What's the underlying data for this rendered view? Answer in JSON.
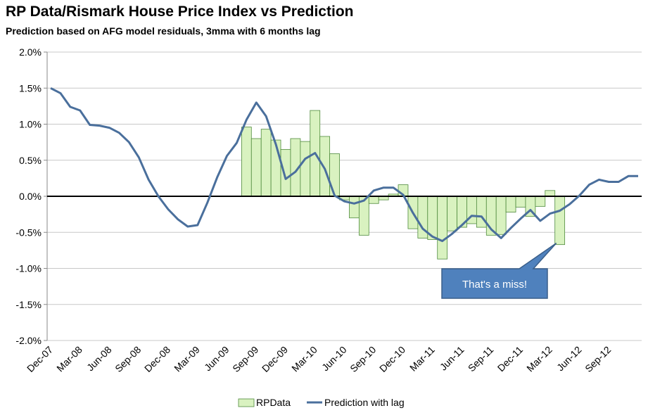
{
  "chart_data": {
    "type": "bar+line",
    "title": "RP Data/Rismark House Price Index vs Prediction",
    "subtitle": "Prediction based on AFG model residuals, 3mma with 6 months lag",
    "ylim": [
      -2.0,
      2.0
    ],
    "y_ticks": [
      2.0,
      1.5,
      1.0,
      0.5,
      0.0,
      -0.5,
      -1.0,
      -1.5,
      -2.0
    ],
    "y_tick_labels": [
      "2.0%",
      "1.5%",
      "1.0%",
      "0.5%",
      "0.0%",
      "-0.5%",
      "-1.0%",
      "-1.5%",
      "-2.0%"
    ],
    "x_tick_labels": [
      "Dec-07",
      "Mar-08",
      "Jun-08",
      "Sep-08",
      "Dec-08",
      "Mar-09",
      "Jun-09",
      "Sep-09",
      "Dec-09",
      "Mar-10",
      "Jun-10",
      "Sep-10",
      "Dec-10",
      "Mar-11",
      "Jun-11",
      "Sep-11",
      "Dec-11",
      "Mar-12",
      "Jun-12",
      "Sep-12"
    ],
    "n_periods": 61,
    "tick_every": 3,
    "series": [
      {
        "name": "RPData",
        "kind": "bar",
        "color": "#d9f2c0",
        "border": "#4f8a3c",
        "start_index": 20,
        "values": [
          0.96,
          0.8,
          0.93,
          0.78,
          0.65,
          0.8,
          0.76,
          1.19,
          0.83,
          0.59,
          -0.05,
          -0.3,
          -0.54,
          -0.1,
          -0.05,
          0.03,
          0.16,
          -0.45,
          -0.58,
          -0.6,
          -0.87,
          -0.48,
          -0.43,
          -0.38,
          -0.43,
          -0.54,
          -0.53,
          -0.22,
          -0.15,
          -0.28,
          -0.14,
          0.08,
          -0.67
        ]
      },
      {
        "name": "Prediction with lag",
        "kind": "line",
        "color": "#4a6f9c",
        "start_index": 0,
        "values": [
          1.5,
          1.43,
          1.24,
          1.19,
          0.99,
          0.98,
          0.95,
          0.88,
          0.75,
          0.54,
          0.23,
          0.0,
          -0.18,
          -0.32,
          -0.42,
          -0.4,
          -0.09,
          0.26,
          0.56,
          0.74,
          1.06,
          1.3,
          1.11,
          0.72,
          0.24,
          0.34,
          0.52,
          0.6,
          0.38,
          0.01,
          -0.07,
          -0.1,
          -0.06,
          0.08,
          0.12,
          0.12,
          0.02,
          -0.23,
          -0.45,
          -0.56,
          -0.62,
          -0.52,
          -0.4,
          -0.27,
          -0.28,
          -0.46,
          -0.58,
          -0.44,
          -0.31,
          -0.19,
          -0.34,
          -0.24,
          -0.2,
          -0.11,
          0.01,
          0.16,
          0.23,
          0.2,
          0.2,
          0.28,
          0.28
        ]
      }
    ],
    "legend": {
      "placement": "bottom",
      "entries": [
        "RPData",
        "Prediction with lag"
      ]
    },
    "annotation": {
      "text": "That's a miss!",
      "color": "#4f81bd",
      "target_index": 52,
      "target_value": -0.67
    },
    "grid": true
  }
}
